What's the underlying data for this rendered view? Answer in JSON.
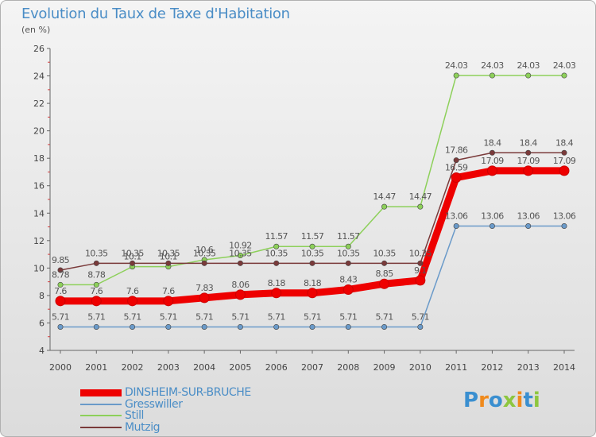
{
  "header": {
    "title": "Evolution du Taux de Taxe d'Habitation",
    "subtitle": "(en %)"
  },
  "logo": {
    "text": "Proxiti",
    "colors": [
      "#3a8fd0",
      "#f08a1c",
      "#3a8fd0",
      "#8dc63f",
      "#f08a1c",
      "#3a8fd0",
      "#8dc63f"
    ]
  },
  "chart_data": {
    "type": "line",
    "x": [
      2000,
      2001,
      2002,
      2003,
      2004,
      2005,
      2006,
      2007,
      2008,
      2009,
      2010,
      2011,
      2012,
      2013,
      2014
    ],
    "ylim": [
      4,
      26
    ],
    "yticks": [
      4,
      6,
      8,
      10,
      12,
      14,
      16,
      18,
      20,
      22,
      24,
      26
    ],
    "grid": false,
    "legend_position": "bottom-left",
    "series": [
      {
        "name": "DINSHEIM-SUR-BRUCHE",
        "color": "#ee0000",
        "values": [
          7.6,
          7.6,
          7.6,
          7.6,
          7.83,
          8.06,
          8.18,
          8.18,
          8.43,
          8.85,
          9.1,
          16.59,
          17.09,
          17.09,
          17.09
        ],
        "labels": [
          "7.6",
          "7.6",
          "7.6",
          "7.6",
          "7.83",
          "8.06",
          "8.18",
          "8.18",
          "8.43",
          "8.85",
          "9.1",
          "16.59",
          "17.09",
          "17.09",
          "17.09"
        ]
      },
      {
        "name": "Gresswiller",
        "color": "#6a9ac9",
        "values": [
          5.71,
          5.71,
          5.71,
          5.71,
          5.71,
          5.71,
          5.71,
          5.71,
          5.71,
          5.71,
          5.71,
          13.06,
          13.06,
          13.06,
          13.06
        ],
        "labels": [
          "5.71",
          "5.71",
          "5.71",
          "5.71",
          "5.71",
          "5.71",
          "5.71",
          "5.71",
          "5.71",
          "5.71",
          "5.71",
          "13.06",
          "13.06",
          "13.06",
          "13.06"
        ]
      },
      {
        "name": "Still",
        "color": "#8dd05a",
        "values": [
          8.78,
          8.78,
          10.1,
          10.1,
          10.6,
          10.92,
          11.57,
          11.57,
          11.57,
          14.47,
          14.47,
          24.03,
          24.03,
          24.03,
          24.03
        ],
        "labels": [
          "8.78",
          "8.78",
          "10.1",
          "10.1",
          "10.6",
          "10.92",
          "11.57",
          "11.57",
          "11.57",
          "14.47",
          "14.47",
          "24.03",
          "24.03",
          "24.03",
          "24.03"
        ]
      },
      {
        "name": "Mutzig",
        "color": "#7a3a3a",
        "values": [
          9.85,
          10.35,
          10.35,
          10.35,
          10.35,
          10.35,
          10.35,
          10.35,
          10.35,
          10.35,
          10.35,
          17.86,
          18.4,
          18.4,
          18.4
        ],
        "labels": [
          "9.85",
          "10.35",
          "10.35",
          "10.35",
          "10.35",
          "10.35",
          "10.35",
          "10.35",
          "10.35",
          "10.35",
          "10.35",
          "17.86",
          "18.4",
          "18.4",
          "18.4"
        ]
      }
    ]
  }
}
